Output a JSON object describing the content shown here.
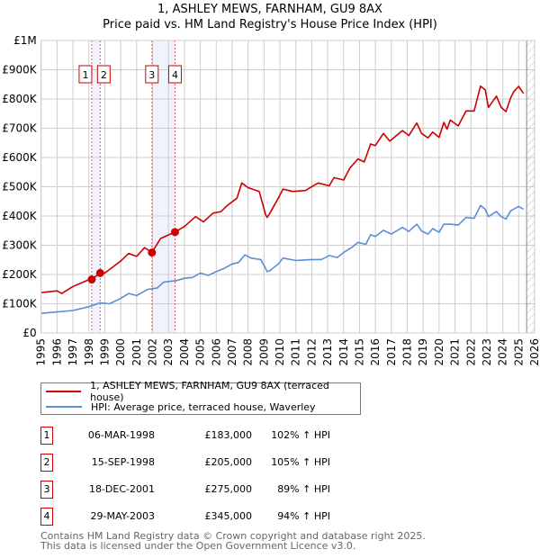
{
  "title_line1": "1, ASHLEY MEWS, FARNHAM, GU9 8AX",
  "title_line2": "Price paid vs. HM Land Registry's House Price Index (HPI)",
  "colors": {
    "property": "#cc0000",
    "hpi": "#5b8fd4",
    "band": "#eef3fd",
    "grid": "#cccccc"
  },
  "legend": {
    "property": "1, ASHLEY MEWS, FARNHAM, GU9 8AX (terraced house)",
    "hpi": "HPI: Average price, terraced house, Waverley"
  },
  "transactions": [
    {
      "num": "1",
      "date": "06-MAR-1998",
      "price": "£183,000",
      "pct": "102% ↑ HPI"
    },
    {
      "num": "2",
      "date": "15-SEP-1998",
      "price": "£205,000",
      "pct": "105% ↑ HPI"
    },
    {
      "num": "3",
      "date": "18-DEC-2001",
      "price": "£275,000",
      "pct": "89% ↑ HPI"
    },
    {
      "num": "4",
      "date": "29-MAY-2003",
      "price": "£345,000",
      "pct": "94% ↑ HPI"
    }
  ],
  "footer_line1": "Contains HM Land Registry data © Crown copyright and database right 2025.",
  "footer_line2": "This data is licensed under the Open Government Licence v3.0.",
  "chart_data": {
    "type": "line",
    "title": "1, ASHLEY MEWS, FARNHAM, GU9 8AX — Price paid vs. HM Land Registry's House Price Index (HPI)",
    "xlim": [
      1995,
      2026
    ],
    "ylim": [
      0,
      1000000
    ],
    "x_ticks": [
      "1995",
      "1996",
      "1997",
      "1998",
      "1999",
      "2000",
      "2001",
      "2002",
      "2003",
      "2004",
      "2005",
      "2006",
      "2007",
      "2008",
      "2009",
      "2010",
      "2011",
      "2012",
      "2013",
      "2014",
      "2015",
      "2016",
      "2017",
      "2018",
      "2019",
      "2020",
      "2021",
      "2022",
      "2023",
      "2024",
      "2025",
      "2026"
    ],
    "y_ticks": [
      {
        "v": 0,
        "label": "£0"
      },
      {
        "v": 100000,
        "label": "£100K"
      },
      {
        "v": 200000,
        "label": "£200K"
      },
      {
        "v": 300000,
        "label": "£300K"
      },
      {
        "v": 400000,
        "label": "£400K"
      },
      {
        "v": 500000,
        "label": "£500K"
      },
      {
        "v": 600000,
        "label": "£600K"
      },
      {
        "v": 700000,
        "label": "£700K"
      },
      {
        "v": 800000,
        "label": "£800K"
      },
      {
        "v": 900000,
        "label": "£900K"
      },
      {
        "v": 1000000,
        "label": "£1M"
      }
    ],
    "grid": true,
    "forecast_from": 2025.5,
    "bands": [
      [
        1998.18,
        1998.71
      ],
      [
        2001.96,
        2003.41
      ]
    ],
    "sales": [
      {
        "label": "1",
        "x": 1998.18,
        "y": 183000
      },
      {
        "label": "2",
        "x": 1998.71,
        "y": 205000
      },
      {
        "label": "3",
        "x": 2001.96,
        "y": 275000
      },
      {
        "label": "4",
        "x": 2003.41,
        "y": 345000
      }
    ],
    "series": [
      {
        "name": "1, ASHLEY MEWS, FARNHAM, GU9 8AX (terraced house)",
        "color": "#cc0000",
        "x": [
          1995,
          1996,
          1996.3,
          1997,
          1997.9,
          1998.18,
          1998.71,
          1999,
          2000,
          2000.5,
          2001,
          2001.5,
          2001.96,
          2002.5,
          2003.41,
          2004,
          2004.7,
          2005.2,
          2005.8,
          2006.3,
          2006.7,
          2007.3,
          2007.6,
          2008,
          2008.7,
          2009.1,
          2009.2,
          2009.37,
          2009.9,
          2010.2,
          2010.8,
          2011.6,
          2012.4,
          2013.1,
          2013.4,
          2014.0,
          2014.4,
          2014.9,
          2015.3,
          2015.7,
          2016.0,
          2016.5,
          2016.9,
          2017.7,
          2018.1,
          2018.6,
          2018.9,
          2019.3,
          2019.6,
          2020.0,
          2020.3,
          2020.5,
          2020.7,
          2021.2,
          2021.7,
          2022.2,
          2022.6,
          2022.9,
          2023.1,
          2023.6,
          2023.9,
          2024.2,
          2024.5,
          2024.7,
          2025.0,
          2025.3
        ],
        "y": [
          138000,
          144000,
          135000,
          159000,
          180000,
          183000,
          205000,
          205000,
          246000,
          272000,
          262000,
          292000,
          275000,
          323000,
          345000,
          364000,
          398000,
          380000,
          410000,
          415000,
          436000,
          461000,
          513000,
          497000,
          484000,
          405000,
          395000,
          410000,
          461000,
          492000,
          484000,
          487000,
          513000,
          503000,
          531000,
          523000,
          564000,
          595000,
          585000,
          646000,
          641000,
          682000,
          656000,
          692000,
          675000,
          718000,
          682000,
          667000,
          687000,
          669000,
          720000,
          697000,
          728000,
          708000,
          759000,
          759000,
          844000,
          831000,
          771000,
          810000,
          771000,
          757000,
          805000,
          826000,
          843000,
          819000
        ]
      },
      {
        "name": "HPI: Average price, terraced house, Waverley",
        "color": "#5b8fd4",
        "x": [
          1995,
          1996,
          1997,
          1998,
          1998.7,
          1999.3,
          2000,
          2000.5,
          2001,
          2001.7,
          2002.3,
          2002.7,
          2003.5,
          2004,
          2004.5,
          2005,
          2005.5,
          2006,
          2006.5,
          2007,
          2007.4,
          2007.8,
          2008.2,
          2008.8,
          2009.2,
          2009.37,
          2009.9,
          2010.2,
          2011,
          2012,
          2012.6,
          2013.1,
          2013.6,
          2014.0,
          2014.5,
          2014.9,
          2015.4,
          2015.7,
          2016.0,
          2016.5,
          2017.0,
          2017.7,
          2018.1,
          2018.6,
          2018.9,
          2019.3,
          2019.6,
          2020.0,
          2020.3,
          2020.7,
          2021.2,
          2021.7,
          2022.2,
          2022.6,
          2022.9,
          2023.1,
          2023.6,
          2023.9,
          2024.2,
          2024.5,
          2025.0,
          2025.3
        ],
        "y": [
          67000,
          72000,
          77000,
          90000,
          103000,
          100000,
          118000,
          135000,
          128000,
          149000,
          154000,
          174000,
          179000,
          187000,
          190000,
          205000,
          197000,
          210000,
          221000,
          236000,
          241000,
          267000,
          256000,
          251000,
          210000,
          213000,
          236000,
          256000,
          248000,
          251000,
          251000,
          265000,
          258000,
          275000,
          292000,
          310000,
          303000,
          336000,
          330000,
          351000,
          338000,
          361000,
          347000,
          372000,
          349000,
          338000,
          357000,
          344000,
          372000,
          372000,
          369000,
          395000,
          392000,
          436000,
          423000,
          398000,
          415000,
          398000,
          390000,
          418000,
          433000,
          423000
        ]
      }
    ]
  }
}
